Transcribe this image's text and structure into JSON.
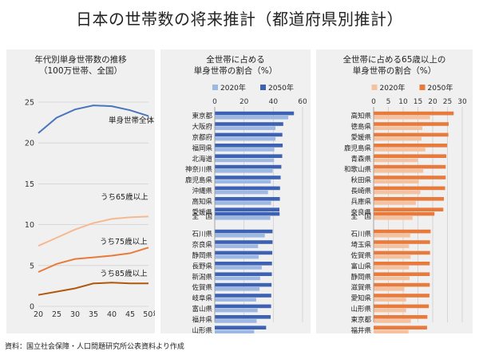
{
  "title": "日本の世帯数の将来推計（都道府県別推計）",
  "source": "資料：国立社会保障・人口問題研究所公表資料より作成",
  "colors": {
    "blue_light": "#9db8e3",
    "blue_dark": "#3e62b3",
    "orange_light": "#f6c19e",
    "orange_dark": "#e87b3c",
    "grid": "#cfcfcf",
    "panel_bg": "#f0f0f0"
  },
  "chart_data": [
    {
      "type": "line",
      "title": "年代別単身世帯数の推移",
      "subtitle": "（100万世帯、全国）",
      "x": [
        20,
        25,
        30,
        35,
        40,
        45,
        50
      ],
      "x_unit": "年",
      "xlim": [
        20,
        50
      ],
      "ylim": [
        0,
        25
      ],
      "yticks": [
        0,
        5,
        10,
        15,
        20,
        25
      ],
      "series": [
        {
          "name": "単身世帯全体",
          "color": "#4a74bd",
          "values": [
            21.2,
            23.1,
            24.1,
            24.6,
            24.5,
            24.0,
            23.3
          ]
        },
        {
          "name": "うち65歳以上",
          "color": "#f6b98f",
          "values": [
            7.4,
            8.4,
            9.4,
            10.2,
            10.7,
            10.9,
            11.0
          ]
        },
        {
          "name": "うち75歳以上",
          "color": "#e87b3c",
          "values": [
            4.2,
            5.2,
            5.8,
            6.0,
            6.2,
            6.5,
            7.2
          ]
        },
        {
          "name": "うち85歳以上",
          "color": "#b0580f",
          "values": [
            1.4,
            1.8,
            2.2,
            2.8,
            2.9,
            2.8,
            2.8
          ]
        }
      ]
    },
    {
      "type": "bar",
      "orientation": "horizontal",
      "title": "全世帯に占める",
      "subtitle": "単身世帯の割合（%）",
      "xlim": [
        0,
        60
      ],
      "xticks": [
        0,
        20,
        40,
        60
      ],
      "legend": [
        "2020年",
        "2050年"
      ],
      "groups": [
        {
          "categories": [
            "東京都",
            "大阪府",
            "京都府",
            "福岡県",
            "北海道",
            "神奈川県",
            "鹿児島県",
            "沖縄県",
            "高知県",
            "愛媛県"
          ],
          "v2020": [
            50.2,
            41.5,
            41.5,
            40.7,
            40.5,
            39.6,
            38.3,
            36.4,
            38.5,
            36.2
          ],
          "v2050": [
            54.1,
            46.8,
            46.2,
            46.4,
            46.1,
            45.5,
            45.0,
            44.6,
            44.5,
            44.2
          ]
        },
        {
          "categories": [
            "全　国"
          ],
          "v2020": [
            38.0
          ],
          "v2050": [
            44.3
          ]
        },
        {
          "categories": [
            "石川県",
            "奈良県",
            "静岡県",
            "長野県",
            "新潟県",
            "佐賀県",
            "岐阜県",
            "富山県",
            "福井県",
            "山形県"
          ],
          "v2020": [
            34.2,
            29.6,
            30.0,
            32.1,
            31.0,
            30.6,
            28.3,
            29.3,
            28.6,
            26.9
          ],
          "v2050": [
            39.5,
            39.5,
            39.3,
            39.1,
            39.0,
            38.8,
            38.6,
            38.5,
            38.2,
            35.1
          ]
        }
      ]
    },
    {
      "type": "bar",
      "orientation": "horizontal",
      "title": "全世帯に占める65歳以上の",
      "subtitle": "単身世帯の割合（%）",
      "xlim": [
        0,
        30
      ],
      "xticks": [
        0,
        5,
        10,
        15,
        20,
        25,
        30
      ],
      "legend": [
        "2020年",
        "2050年"
      ],
      "groups": [
        {
          "categories": [
            "高知県",
            "徳島県",
            "愛媛県",
            "鹿児島県",
            "青森県",
            "和歌山県",
            "秋田県",
            "長崎県",
            "兵庫県",
            "奈良県"
          ],
          "v2020": [
            19.1,
            16.5,
            16.2,
            17.5,
            14.9,
            16.8,
            15.3,
            15.8,
            14.3,
            13.8
          ],
          "v2050": [
            27.1,
            25.4,
            25.3,
            24.9,
            24.6,
            24.4,
            24.4,
            24.2,
            23.8,
            23.6
          ]
        },
        {
          "categories": [
            "全　国"
          ],
          "v2020": [
            13.2
          ],
          "v2050": [
            20.6
          ]
        },
        {
          "categories": [
            "石川県",
            "埼玉県",
            "佐賀県",
            "富山県",
            "静岡県",
            "滋賀県",
            "愛知県",
            "山形県",
            "東京都",
            "福井県"
          ],
          "v2020": [
            12.4,
            12.0,
            12.5,
            12.0,
            12.2,
            10.4,
            11.0,
            11.0,
            12.6,
            11.8
          ],
          "v2050": [
            19.3,
            19.1,
            19.1,
            19.0,
            19.0,
            19.0,
            18.9,
            18.7,
            18.2,
            18.1
          ]
        }
      ]
    }
  ],
  "line_labels": [
    "単身世帯全体",
    "うち65歳以上",
    "うち75歳以上",
    "うち85歳以上"
  ]
}
